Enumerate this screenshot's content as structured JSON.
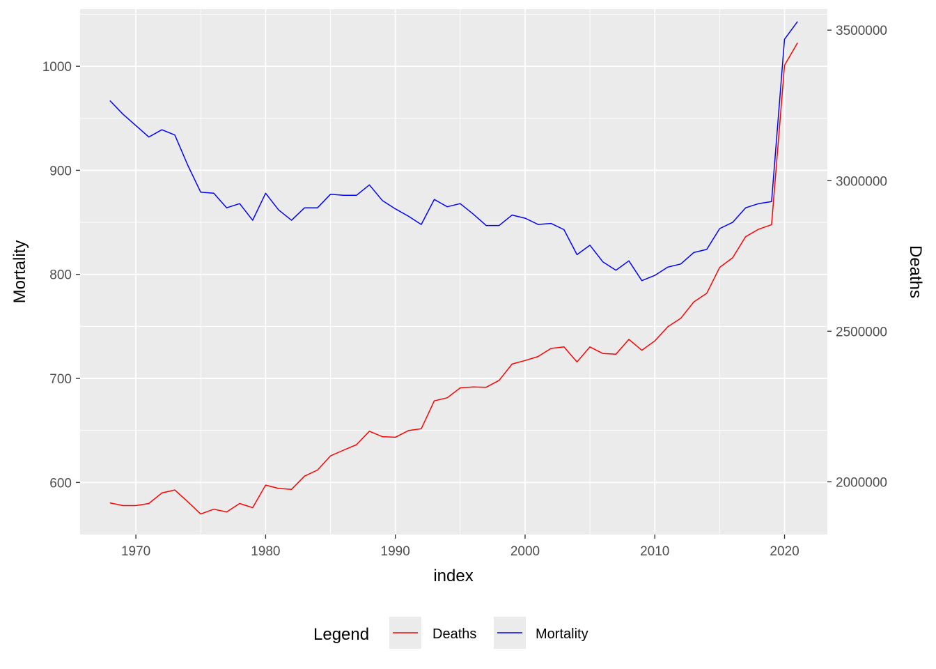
{
  "chart_data": {
    "type": "line",
    "xlabel": "index",
    "ylabel_left": "Mortality",
    "ylabel_right": "Deaths",
    "xlim": [
      1965.7,
      2023.3
    ],
    "x_ticks": [
      1970,
      1980,
      1990,
      2000,
      2010,
      2020
    ],
    "ylim_left": [
      550,
      1055
    ],
    "y_ticks_left": [
      600,
      700,
      800,
      900,
      1000
    ],
    "ylim_right": [
      1825000,
      3570000
    ],
    "y_ticks_right": [
      2000000,
      2500000,
      3000000,
      3500000
    ],
    "grid": true,
    "legend_position": "bottom",
    "legend_title": "Legend",
    "x": [
      1968,
      1969,
      1970,
      1971,
      1972,
      1973,
      1974,
      1975,
      1976,
      1977,
      1978,
      1979,
      1980,
      1981,
      1982,
      1983,
      1984,
      1985,
      1986,
      1987,
      1988,
      1989,
      1990,
      1991,
      1992,
      1993,
      1994,
      1995,
      1996,
      1997,
      1998,
      1999,
      2000,
      2001,
      2002,
      2003,
      2004,
      2005,
      2006,
      2007,
      2008,
      2009,
      2010,
      2011,
      2012,
      2013,
      2014,
      2015,
      2016,
      2017,
      2018,
      2019,
      2020,
      2021
    ],
    "series": [
      {
        "name": "Deaths",
        "axis": "right",
        "color": "#ff0000",
        "values": [
          1930000,
          1921000,
          1921000,
          1928000,
          1963000,
          1973000,
          1934000,
          1893000,
          1909000,
          1900000,
          1928000,
          1914000,
          1989000,
          1978000,
          1975000,
          2019000,
          2039000,
          2086000,
          2105000,
          2123000,
          2168000,
          2150000,
          2148000,
          2170000,
          2176000,
          2269000,
          2279000,
          2312000,
          2315000,
          2314000,
          2337000,
          2391000,
          2403000,
          2416000,
          2443000,
          2448000,
          2398000,
          2448000,
          2426000,
          2424000,
          2473000,
          2437000,
          2468000,
          2515000,
          2543000,
          2597000,
          2626000,
          2712000,
          2744000,
          2814000,
          2839000,
          2854000,
          3383000,
          3458000
        ]
      },
      {
        "name": "Mortality",
        "axis": "left",
        "color": "#0000ff",
        "values": [
          967,
          954,
          943,
          932,
          939,
          934,
          905,
          879,
          878,
          864,
          868,
          852,
          878,
          862,
          852,
          864,
          864,
          877,
          876,
          876,
          886,
          871,
          863,
          856,
          848,
          872,
          865,
          868,
          858,
          847,
          847,
          857,
          854,
          848,
          849,
          843,
          819,
          828,
          812,
          804,
          813,
          794,
          799,
          807,
          810,
          821,
          824,
          844,
          850,
          864,
          868,
          870,
          1026,
          1043
        ]
      }
    ]
  }
}
